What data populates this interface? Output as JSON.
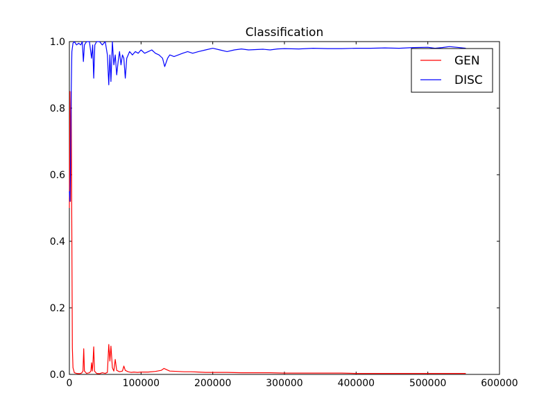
{
  "chart_data": {
    "type": "line",
    "title": "Classification",
    "xlabel": "",
    "ylabel": "",
    "xlim": [
      0,
      600000
    ],
    "ylim": [
      0.0,
      1.0
    ],
    "x_ticks": [
      "0",
      "100000",
      "200000",
      "300000",
      "400000",
      "500000",
      "600000"
    ],
    "y_ticks": [
      "0.0",
      "0.2",
      "0.4",
      "0.6",
      "0.8",
      "1.0"
    ],
    "grid": false,
    "legend_position": "top-right",
    "series": [
      {
        "name": "GEN",
        "color": "#ff0000",
        "points": [
          [
            0,
            0.5
          ],
          [
            800,
            0.85
          ],
          [
            1500,
            0.52
          ],
          [
            2500,
            0.85
          ],
          [
            3500,
            0.4
          ],
          [
            4200,
            0.08
          ],
          [
            5000,
            0.02
          ],
          [
            7000,
            0.005
          ],
          [
            10000,
            0.003
          ],
          [
            14000,
            0.002
          ],
          [
            17000,
            0.004
          ],
          [
            19000,
            0.01
          ],
          [
            20000,
            0.077
          ],
          [
            21000,
            0.01
          ],
          [
            24000,
            0.003
          ],
          [
            28000,
            0.005
          ],
          [
            30000,
            0.01
          ],
          [
            31000,
            0.035
          ],
          [
            32000,
            0.01
          ],
          [
            33000,
            0.04
          ],
          [
            34000,
            0.083
          ],
          [
            35000,
            0.01
          ],
          [
            38000,
            0.003
          ],
          [
            42000,
            0.002
          ],
          [
            46000,
            0.005
          ],
          [
            50000,
            0.003
          ],
          [
            53000,
            0.006
          ],
          [
            55000,
            0.09
          ],
          [
            56500,
            0.04
          ],
          [
            58000,
            0.085
          ],
          [
            60000,
            0.02
          ],
          [
            62000,
            0.01
          ],
          [
            64000,
            0.045
          ],
          [
            66000,
            0.012
          ],
          [
            70000,
            0.008
          ],
          [
            74000,
            0.01
          ],
          [
            76000,
            0.025
          ],
          [
            78000,
            0.012
          ],
          [
            82000,
            0.008
          ],
          [
            86000,
            0.006
          ],
          [
            90000,
            0.007
          ],
          [
            95000,
            0.006
          ],
          [
            100000,
            0.007
          ],
          [
            110000,
            0.007
          ],
          [
            120000,
            0.009
          ],
          [
            128000,
            0.012
          ],
          [
            132000,
            0.018
          ],
          [
            136000,
            0.014
          ],
          [
            140000,
            0.01
          ],
          [
            150000,
            0.009
          ],
          [
            160000,
            0.008
          ],
          [
            170000,
            0.008
          ],
          [
            180000,
            0.007
          ],
          [
            190000,
            0.006
          ],
          [
            200000,
            0.006
          ],
          [
            220000,
            0.006
          ],
          [
            240000,
            0.005
          ],
          [
            260000,
            0.005
          ],
          [
            280000,
            0.005
          ],
          [
            300000,
            0.004
          ],
          [
            320000,
            0.004
          ],
          [
            340000,
            0.004
          ],
          [
            360000,
            0.004
          ],
          [
            380000,
            0.004
          ],
          [
            400000,
            0.003
          ],
          [
            420000,
            0.003
          ],
          [
            440000,
            0.003
          ],
          [
            460000,
            0.003
          ],
          [
            480000,
            0.003
          ],
          [
            500000,
            0.003
          ],
          [
            520000,
            0.003
          ],
          [
            540000,
            0.003
          ],
          [
            553000,
            0.003
          ]
        ]
      },
      {
        "name": "DISC",
        "color": "#0000ff",
        "points": [
          [
            0,
            0.55
          ],
          [
            800,
            0.52
          ],
          [
            1500,
            0.6
          ],
          [
            2500,
            0.84
          ],
          [
            3500,
            0.97
          ],
          [
            5000,
            0.995
          ],
          [
            7000,
            1.0
          ],
          [
            10000,
            0.99
          ],
          [
            13000,
            0.995
          ],
          [
            16000,
            0.99
          ],
          [
            18000,
            1.0
          ],
          [
            19500,
            0.94
          ],
          [
            21000,
            0.99
          ],
          [
            24000,
            1.0
          ],
          [
            28000,
            1.0
          ],
          [
            31000,
            0.95
          ],
          [
            32500,
            0.99
          ],
          [
            34000,
            0.89
          ],
          [
            35500,
            0.99
          ],
          [
            38000,
            1.0
          ],
          [
            42000,
            1.0
          ],
          [
            46000,
            0.99
          ],
          [
            50000,
            1.0
          ],
          [
            53000,
            0.96
          ],
          [
            55000,
            0.87
          ],
          [
            56500,
            0.96
          ],
          [
            58000,
            0.88
          ],
          [
            60000,
            1.0
          ],
          [
            62000,
            0.93
          ],
          [
            64000,
            0.96
          ],
          [
            66000,
            0.9
          ],
          [
            68000,
            0.94
          ],
          [
            70000,
            0.97
          ],
          [
            72000,
            0.93
          ],
          [
            74000,
            0.96
          ],
          [
            76000,
            0.95
          ],
          [
            78000,
            0.89
          ],
          [
            80000,
            0.95
          ],
          [
            84000,
            0.97
          ],
          [
            88000,
            0.96
          ],
          [
            92000,
            0.97
          ],
          [
            96000,
            0.965
          ],
          [
            100000,
            0.975
          ],
          [
            105000,
            0.965
          ],
          [
            110000,
            0.97
          ],
          [
            115000,
            0.975
          ],
          [
            120000,
            0.965
          ],
          [
            125000,
            0.96
          ],
          [
            130000,
            0.95
          ],
          [
            133000,
            0.925
          ],
          [
            137000,
            0.95
          ],
          [
            140000,
            0.96
          ],
          [
            146000,
            0.955
          ],
          [
            152000,
            0.96
          ],
          [
            158000,
            0.965
          ],
          [
            165000,
            0.97
          ],
          [
            172000,
            0.965
          ],
          [
            180000,
            0.97
          ],
          [
            190000,
            0.975
          ],
          [
            200000,
            0.98
          ],
          [
            210000,
            0.975
          ],
          [
            220000,
            0.97
          ],
          [
            230000,
            0.975
          ],
          [
            240000,
            0.978
          ],
          [
            250000,
            0.975
          ],
          [
            260000,
            0.976
          ],
          [
            270000,
            0.977
          ],
          [
            280000,
            0.975
          ],
          [
            290000,
            0.978
          ],
          [
            300000,
            0.979
          ],
          [
            320000,
            0.978
          ],
          [
            340000,
            0.98
          ],
          [
            360000,
            0.979
          ],
          [
            380000,
            0.979
          ],
          [
            400000,
            0.98
          ],
          [
            420000,
            0.98
          ],
          [
            440000,
            0.981
          ],
          [
            460000,
            0.98
          ],
          [
            480000,
            0.982
          ],
          [
            500000,
            0.983
          ],
          [
            510000,
            0.98
          ],
          [
            520000,
            0.982
          ],
          [
            530000,
            0.985
          ],
          [
            540000,
            0.983
          ],
          [
            553000,
            0.98
          ]
        ]
      }
    ]
  }
}
